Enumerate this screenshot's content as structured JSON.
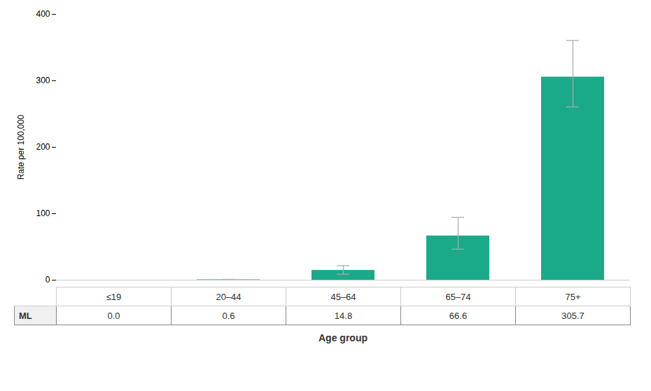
{
  "chart_data": {
    "type": "bar",
    "categories": [
      "≤19",
      "20–44",
      "45–64",
      "65–74",
      "75+"
    ],
    "values": [
      0.0,
      0.6,
      14.8,
      66.6,
      305.7
    ],
    "error_upper": [
      0.0,
      0.5,
      7.0,
      28.0,
      55.0
    ],
    "error_lower": [
      0.0,
      0.4,
      6.0,
      20.0,
      45.0
    ],
    "color": "#1aaa8a",
    "error_color": "#aaaaaa",
    "ylabel": "Rate per 100,000",
    "xlabel": "Age group",
    "ylim": [
      0,
      400
    ],
    "yticks": [
      0,
      100,
      200,
      300,
      400
    ],
    "grid": false,
    "tick_labels": "y",
    "table_row_label": "ML",
    "table_values": [
      "0.0",
      "0.6",
      "14.8",
      "66.6",
      "305.7"
    ]
  }
}
